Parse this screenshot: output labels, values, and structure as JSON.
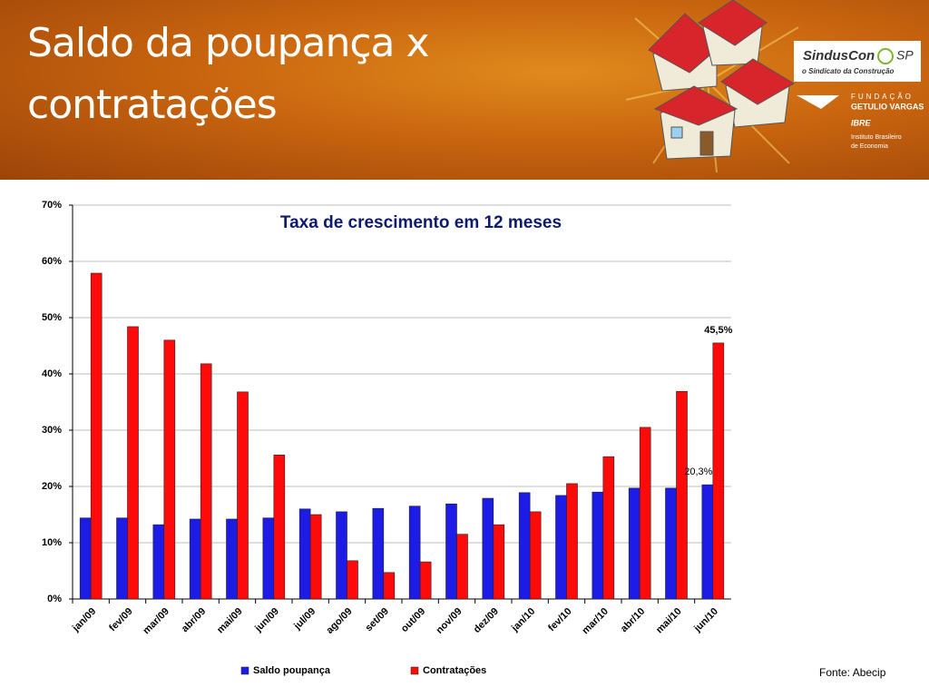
{
  "header": {
    "title": "Saldo da poupança x contratações",
    "logo_sinduscon": "SindusCon",
    "logo_sp": "SP",
    "logo_sinduscon_tagline": "o Sindicato da Construção",
    "logo_fgv_1": "FUNDAÇÃO",
    "logo_fgv_2": "GETULIO VARGAS",
    "logo_ibre": "IBRE",
    "logo_ibre_1": "Instituto Brasileiro",
    "logo_ibre_2": "de Economia"
  },
  "chart_data": {
    "type": "bar",
    "title": "Taxa de crescimento em 12 meses",
    "categories": [
      "jan/09",
      "fev/09",
      "mar/09",
      "abr/09",
      "mai/09",
      "jun/09",
      "jul/09",
      "ago/09",
      "set/09",
      "out/09",
      "nov/09",
      "dez/09",
      "jan/10",
      "fev/10",
      "mar/10",
      "abr/10",
      "mai/10",
      "jun/10"
    ],
    "series": [
      {
        "name": "Saldo poupança",
        "color": "#1c1ce6",
        "values": [
          14.4,
          14.4,
          13.2,
          14.2,
          14.2,
          14.4,
          16.0,
          15.5,
          16.1,
          16.5,
          16.9,
          17.9,
          18.9,
          18.4,
          19.0,
          19.7,
          19.7,
          20.3
        ],
        "value_labels": [
          null,
          null,
          null,
          null,
          null,
          null,
          null,
          null,
          null,
          null,
          null,
          null,
          null,
          null,
          null,
          null,
          null,
          "20,3%"
        ]
      },
      {
        "name": "Contratações",
        "color": "#ff0a0a",
        "values": [
          57.9,
          48.4,
          46.0,
          41.8,
          36.8,
          25.6,
          15.0,
          6.8,
          4.7,
          6.6,
          11.5,
          13.2,
          15.5,
          20.5,
          25.3,
          30.5,
          36.9,
          45.5
        ],
        "value_labels": [
          null,
          null,
          null,
          null,
          null,
          null,
          null,
          null,
          null,
          null,
          null,
          null,
          null,
          null,
          null,
          null,
          null,
          "45,5%"
        ]
      }
    ],
    "ylim": [
      0,
      70
    ],
    "yticks": [
      {
        "value": 0,
        "label": "0%"
      },
      {
        "value": 10,
        "label": "10%"
      },
      {
        "value": 20,
        "label": "20%"
      },
      {
        "value": 30,
        "label": "30%"
      },
      {
        "value": 40,
        "label": "40%"
      },
      {
        "value": 50,
        "label": "50%"
      },
      {
        "value": 60,
        "label": "60%"
      },
      {
        "value": 70,
        "label": "70%"
      }
    ],
    "grid": true,
    "legend": "bottom"
  },
  "source": "Fonte: Abecip"
}
